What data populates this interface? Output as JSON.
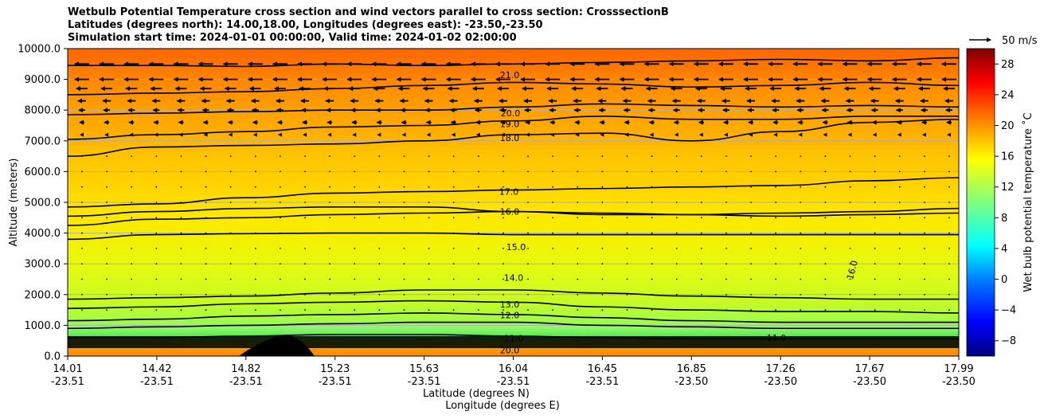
{
  "chart_data": {
    "type": "contour",
    "title_lines": [
      "Wetbulb Potential Temperature cross section and wind vectors parallel to cross section: CrosssectionB",
      "Latitudes (degrees north): 14.00,18.00, Longitudes (degrees east): -23.50,-23.50",
      "Simulation start time: 2024-01-01 00:00:00, Valid time: 2024-01-02 02:00:00"
    ],
    "ylabel": "Altitude (meters)",
    "xlabel": "Latitude (degrees N)",
    "xlabel2": "Longitude (degrees E)",
    "ylim": [
      0,
      10000
    ],
    "yticks": [
      "0.0",
      "1000.0",
      "2000.0",
      "3000.0",
      "4000.0",
      "5000.0",
      "6000.0",
      "7000.0",
      "8000.0",
      "9000.0",
      "10000.0"
    ],
    "xticks": [
      {
        "lat": "14.01",
        "lon": "-23.51"
      },
      {
        "lat": "14.42",
        "lon": "-23.51"
      },
      {
        "lat": "14.82",
        "lon": "-23.51"
      },
      {
        "lat": "15.23",
        "lon": "-23.51"
      },
      {
        "lat": "15.63",
        "lon": "-23.51"
      },
      {
        "lat": "16.04",
        "lon": "-23.51"
      },
      {
        "lat": "16.45",
        "lon": "-23.51"
      },
      {
        "lat": "16.85",
        "lon": "-23.50"
      },
      {
        "lat": "17.26",
        "lon": "-23.50"
      },
      {
        "lat": "17.67",
        "lon": "-23.50"
      },
      {
        "lat": "17.99",
        "lon": "-23.50"
      }
    ],
    "grid": true,
    "colorbar": {
      "label": "Wet bulb potential temperature ˚C",
      "colormap": "jet",
      "range": [
        -10,
        30
      ],
      "ticks": [
        "−8",
        "−4",
        "0",
        "4",
        "8",
        "12",
        "16",
        "20",
        "24",
        "28"
      ]
    },
    "quiver_key": "50 m/s",
    "contour_labels": [
      {
        "value": "21.0",
        "altitude": 9150
      },
      {
        "value": "20.0",
        "altitude": 7900
      },
      {
        "value": "19.0",
        "altitude": 7550
      },
      {
        "value": "18.0",
        "altitude": 7100
      },
      {
        "value": "17.0",
        "altitude": 5350
      },
      {
        "value": "16.0",
        "altitude": 4700
      },
      {
        "value": "15.0",
        "altitude": 3550
      },
      {
        "value": "14.0",
        "altitude": 2550
      },
      {
        "value": "13.0",
        "altitude": 1680
      },
      {
        "value": "12.0",
        "altitude": 1330
      },
      {
        "value": "11.0",
        "altitude": 580
      },
      {
        "value": "20.0",
        "altitude": 200
      },
      {
        "value": "16.0",
        "altitude": 2800
      },
      {
        "value": "11.0",
        "altitude": 600
      }
    ],
    "contour_levels": [
      {
        "level": 21,
        "alt": [
          9450,
          9450,
          9420,
          9500,
          9450,
          9500,
          9550,
          9600,
          9650,
          9600,
          9700
        ]
      },
      {
        "level": 20,
        "alt": [
          8500,
          8550,
          8600,
          8700,
          8800,
          8900,
          8850,
          8750,
          8800,
          8900,
          8800
        ]
      },
      {
        "level": 19,
        "alt": [
          7850,
          7900,
          7950,
          8000,
          8000,
          8100,
          8200,
          8150,
          8100,
          8150,
          8100
        ]
      },
      {
        "level": 18,
        "alt": [
          7050,
          7200,
          7300,
          7450,
          7500,
          7650,
          7800,
          7700,
          7700,
          7800,
          7800
        ]
      },
      {
        "level": 17,
        "alt": [
          6500,
          6800,
          6850,
          6900,
          7000,
          7200,
          7250,
          7000,
          7300,
          7600,
          7700
        ]
      },
      {
        "level": 16.5,
        "alt": [
          4850,
          4950,
          5150,
          5300,
          5350,
          5400,
          5450,
          5500,
          5550,
          5700,
          5800
        ]
      },
      {
        "level": 16,
        "alt": [
          4550,
          4700,
          4800,
          4850,
          4850,
          4700,
          4600,
          4600,
          4650,
          4700,
          4800
        ]
      },
      {
        "level": 15.5,
        "alt": [
          4250,
          4450,
          4500,
          4600,
          4650,
          4700,
          4650,
          4600,
          4550,
          4600,
          4650
        ]
      },
      {
        "level": 15,
        "alt": [
          3800,
          3950,
          3980,
          4000,
          4000,
          3950,
          3950,
          3950,
          3950,
          3950,
          3950
        ]
      },
      {
        "level": 14,
        "alt": [
          1850,
          1900,
          1950,
          2050,
          2150,
          2150,
          2050,
          1950,
          1900,
          1850,
          1850
        ]
      },
      {
        "level": 13,
        "alt": [
          1550,
          1600,
          1700,
          1750,
          1800,
          1750,
          1600,
          1500,
          1450,
          1450,
          1400
        ]
      },
      {
        "level": 12,
        "alt": [
          1150,
          1200,
          1300,
          1350,
          1400,
          1350,
          1250,
          1150,
          1100,
          1100,
          1100
        ]
      },
      {
        "level": 11.5,
        "alt": [
          900,
          950,
          1000,
          1050,
          1100,
          1100,
          1000,
          950,
          900,
          900,
          900
        ]
      },
      {
        "level": 11,
        "alt": [
          600,
          600,
          650,
          700,
          700,
          650,
          600,
          560,
          560,
          560,
          560
        ]
      }
    ],
    "wind_vectors_upper_layer": [
      {
        "altitude": 9500,
        "u": -9
      },
      {
        "altitude": 9000,
        "u": -9
      },
      {
        "altitude": 8700,
        "u": -7
      },
      {
        "altitude": 8300,
        "u": -5
      },
      {
        "altitude": 8000,
        "u": -4
      },
      {
        "altitude": 7600,
        "u": -3
      },
      {
        "altitude": 7200,
        "u": -2
      }
    ]
  }
}
